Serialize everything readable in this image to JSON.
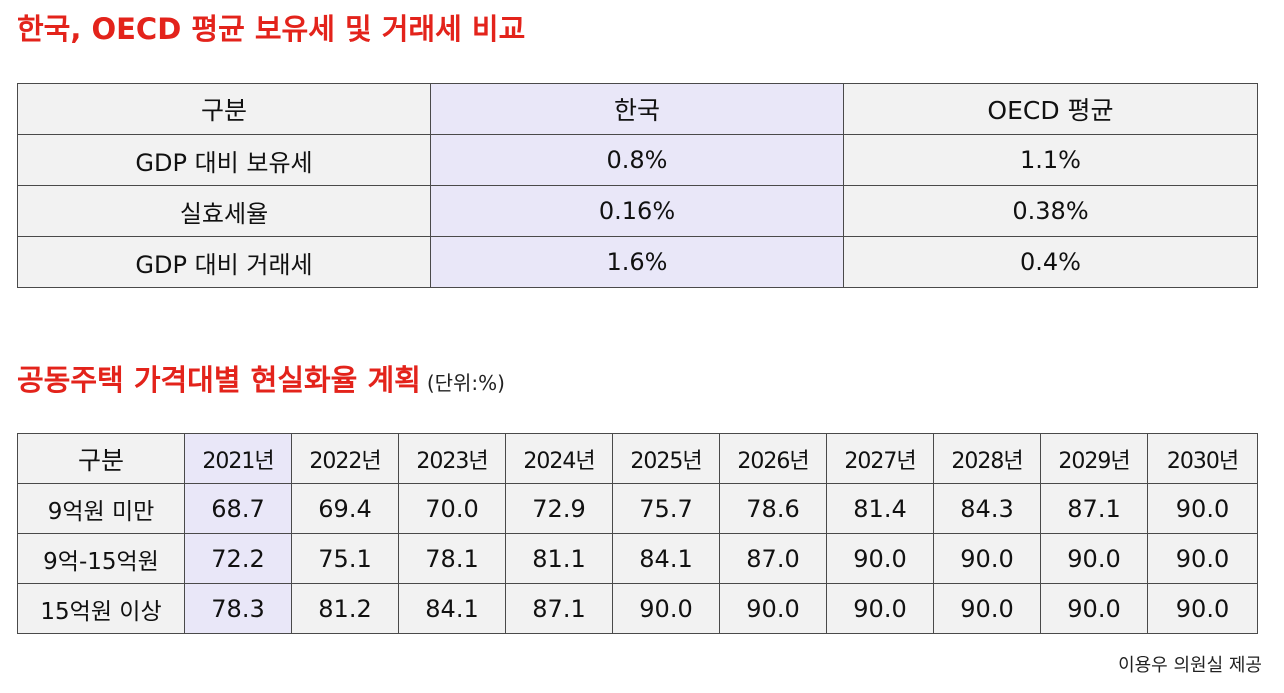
{
  "title1": "한국, OECD 평균 보유세 및 거래세 비교",
  "table1": {
    "headers": [
      "구분",
      "한국",
      "OECD 평균"
    ],
    "rows": [
      [
        "GDP 대비 보유세",
        "0.8%",
        "1.1%"
      ],
      [
        "실효세율",
        "0.16%",
        "0.38%"
      ],
      [
        "GDP 대비 거래세",
        "1.6%",
        "0.4%"
      ]
    ]
  },
  "title2": "공동주택 가격대별 현실화율 계획",
  "title2_unit": "(단위:%)",
  "table2": {
    "headers": [
      "구분",
      "2021년",
      "2022년",
      "2023년",
      "2024년",
      "2025년",
      "2026년",
      "2027년",
      "2028년",
      "2029년",
      "2030년"
    ],
    "rows": [
      [
        "9억원 미만",
        "68.7",
        "69.4",
        "70.0",
        "72.9",
        "75.7",
        "78.6",
        "81.4",
        "84.3",
        "87.1",
        "90.0"
      ],
      [
        "9억-15억원",
        "72.2",
        "75.1",
        "78.1",
        "81.1",
        "84.1",
        "87.0",
        "90.0",
        "90.0",
        "90.0",
        "90.0"
      ],
      [
        "15억원 이상",
        "78.3",
        "81.2",
        "84.1",
        "87.1",
        "90.0",
        "90.0",
        "90.0",
        "90.0",
        "90.0",
        "90.0"
      ]
    ]
  },
  "source": "이용우 의원실 제공",
  "colors": {
    "title": "#e3231b",
    "highlight": "#e9e7f8",
    "cell": "#f2f2f2"
  }
}
